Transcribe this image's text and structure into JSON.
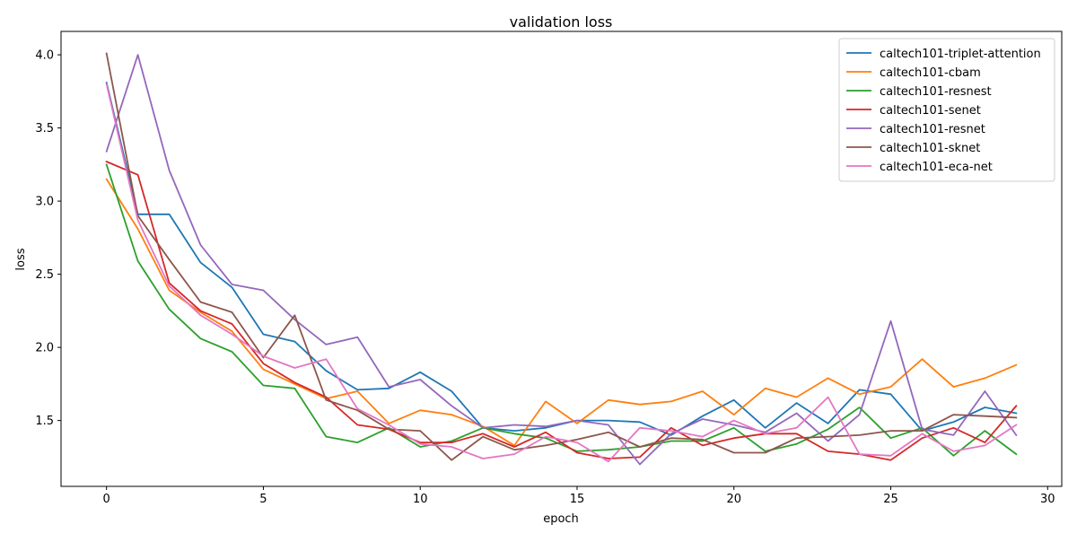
{
  "chart_data": {
    "type": "line",
    "title": "validation loss",
    "xlabel": "epoch",
    "ylabel": "loss",
    "xlim": [
      -1.45,
      30.45
    ],
    "ylim": [
      1.05,
      4.16
    ],
    "xticks": [
      0,
      5,
      10,
      15,
      20,
      25,
      30
    ],
    "xtick_labels": [
      "0",
      "5",
      "10",
      "15",
      "20",
      "25",
      "30"
    ],
    "yticks": [
      1.5,
      2.0,
      2.5,
      3.0,
      3.5,
      4.0
    ],
    "ytick_labels": [
      "1.5",
      "2.0",
      "2.5",
      "3.0",
      "3.5",
      "4.0"
    ],
    "grid": false,
    "legend_position": "top-right",
    "x": [
      0,
      1,
      2,
      3,
      4,
      5,
      6,
      7,
      8,
      9,
      10,
      11,
      12,
      13,
      14,
      15,
      16,
      17,
      18,
      19,
      20,
      21,
      22,
      23,
      24,
      25,
      26,
      27,
      28,
      29
    ],
    "series": [
      {
        "name": "caltech101-triplet-attention",
        "color": "#1f77b4",
        "values": [
          3.81,
          2.91,
          2.91,
          2.58,
          2.41,
          2.09,
          2.04,
          1.84,
          1.71,
          1.72,
          1.83,
          1.7,
          1.45,
          1.43,
          1.45,
          1.5,
          1.5,
          1.49,
          1.4,
          1.53,
          1.64,
          1.45,
          1.62,
          1.48,
          1.71,
          1.68,
          1.43,
          1.49,
          1.59,
          1.55
        ]
      },
      {
        "name": "caltech101-cbam",
        "color": "#ff7f0e",
        "values": [
          3.15,
          2.81,
          2.39,
          2.24,
          2.11,
          1.85,
          1.75,
          1.65,
          1.7,
          1.48,
          1.57,
          1.54,
          1.46,
          1.33,
          1.63,
          1.48,
          1.64,
          1.61,
          1.63,
          1.7,
          1.54,
          1.72,
          1.66,
          1.79,
          1.68,
          1.73,
          1.92,
          1.73,
          1.79,
          1.88
        ]
      },
      {
        "name": "caltech101-resnest",
        "color": "#2ca02c",
        "values": [
          3.25,
          2.59,
          2.26,
          2.06,
          1.97,
          1.74,
          1.72,
          1.39,
          1.35,
          1.45,
          1.32,
          1.36,
          1.45,
          1.41,
          1.38,
          1.29,
          1.3,
          1.32,
          1.36,
          1.36,
          1.45,
          1.29,
          1.34,
          1.44,
          1.59,
          1.38,
          1.45,
          1.26,
          1.43,
          1.27
        ]
      },
      {
        "name": "caltech101-senet",
        "color": "#d62728",
        "values": [
          3.27,
          3.18,
          2.44,
          2.25,
          2.16,
          1.89,
          1.76,
          1.66,
          1.47,
          1.44,
          1.35,
          1.35,
          1.41,
          1.32,
          1.42,
          1.28,
          1.24,
          1.25,
          1.45,
          1.33,
          1.38,
          1.41,
          1.41,
          1.29,
          1.27,
          1.23,
          1.38,
          1.45,
          1.35,
          1.6
        ]
      },
      {
        "name": "caltech101-resnet",
        "color": "#9467bd",
        "values": [
          3.34,
          4.0,
          3.21,
          2.7,
          2.43,
          2.39,
          2.19,
          2.02,
          2.07,
          1.73,
          1.78,
          1.6,
          1.45,
          1.47,
          1.46,
          1.5,
          1.47,
          1.2,
          1.41,
          1.51,
          1.47,
          1.42,
          1.55,
          1.36,
          1.54,
          2.18,
          1.44,
          1.4,
          1.7,
          1.4
        ]
      },
      {
        "name": "caltech101-sknet",
        "color": "#8c564b",
        "values": [
          4.01,
          2.9,
          2.6,
          2.31,
          2.24,
          1.93,
          2.22,
          1.64,
          1.57,
          1.44,
          1.43,
          1.23,
          1.39,
          1.3,
          1.33,
          1.37,
          1.42,
          1.32,
          1.38,
          1.37,
          1.28,
          1.28,
          1.38,
          1.39,
          1.4,
          1.43,
          1.43,
          1.54,
          1.53,
          1.52
        ]
      },
      {
        "name": "caltech101-eca-net",
        "color": "#e377c2",
        "values": [
          3.8,
          2.87,
          2.42,
          2.22,
          2.09,
          1.94,
          1.86,
          1.92,
          1.58,
          1.47,
          1.34,
          1.32,
          1.24,
          1.27,
          1.39,
          1.35,
          1.22,
          1.45,
          1.43,
          1.39,
          1.5,
          1.41,
          1.45,
          1.66,
          1.27,
          1.26,
          1.41,
          1.29,
          1.33,
          1.47
        ]
      }
    ]
  }
}
